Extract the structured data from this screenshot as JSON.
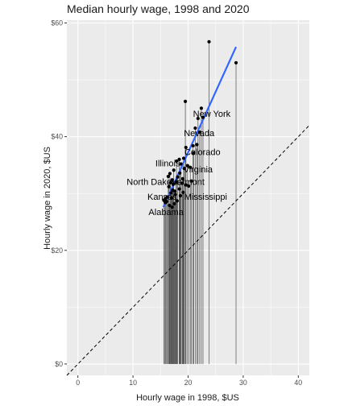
{
  "chart_data": {
    "type": "scatter",
    "title": "Median hourly wage, 1998 and 2020",
    "xlabel": "Hourly wage in 1998, $US",
    "ylabel": "Hourly wage in 2020, $US",
    "xlim": [
      -2,
      42
    ],
    "ylim": [
      -2,
      60.5
    ],
    "x_ticks": [
      0,
      10,
      20,
      30,
      40
    ],
    "x_tick_labels": [
      "0",
      "10",
      "20",
      "30",
      "40"
    ],
    "y_ticks": [
      0,
      20,
      40,
      60
    ],
    "y_tick_labels": [
      "$0",
      "$20",
      "$40",
      "$60"
    ],
    "grid": true,
    "colors": {
      "panel_background": "#ebebeb",
      "grid": "#ffffff",
      "points": "#000000",
      "segments": "#4d4d4d",
      "fit_line": "#3366ff",
      "reference_line": "#000000"
    },
    "reference_line": {
      "style": "dashed",
      "slope": 1,
      "intercept": 0
    },
    "fit_line": {
      "x": [
        15.5,
        28.7
      ],
      "y": [
        27.6,
        55.8
      ]
    },
    "points": [
      {
        "x": 23.8,
        "y": 56.7
      },
      {
        "x": 28.7,
        "y": 53.0
      },
      {
        "x": 19.5,
        "y": 46.2
      },
      {
        "x": 22.4,
        "y": 45.0
      },
      {
        "x": 21.8,
        "y": 43.2
      },
      {
        "x": 22.7,
        "y": 43.4
      },
      {
        "x": 21.3,
        "y": 41.5
      },
      {
        "x": 22.1,
        "y": 40.8
      },
      {
        "x": 20.9,
        "y": 38.4
      },
      {
        "x": 21.6,
        "y": 38.6
      },
      {
        "x": 19.6,
        "y": 38.1
      },
      {
        "x": 18.4,
        "y": 36.0
      },
      {
        "x": 19.2,
        "y": 36.2
      },
      {
        "x": 17.9,
        "y": 35.7
      },
      {
        "x": 18.7,
        "y": 35.2
      },
      {
        "x": 19.9,
        "y": 34.9
      },
      {
        "x": 20.4,
        "y": 34.6
      },
      {
        "x": 17.4,
        "y": 34.1
      },
      {
        "x": 16.7,
        "y": 33.5
      },
      {
        "x": 18.1,
        "y": 32.9
      },
      {
        "x": 19.0,
        "y": 32.6
      },
      {
        "x": 16.4,
        "y": 33.0
      },
      {
        "x": 17.1,
        "y": 32.4
      },
      {
        "x": 17.8,
        "y": 32.0
      },
      {
        "x": 18.9,
        "y": 31.8
      },
      {
        "x": 19.6,
        "y": 31.5
      },
      {
        "x": 17.3,
        "y": 31.6
      },
      {
        "x": 16.5,
        "y": 31.2
      },
      {
        "x": 18.4,
        "y": 30.8
      },
      {
        "x": 17.6,
        "y": 30.4
      },
      {
        "x": 16.9,
        "y": 30.1
      },
      {
        "x": 17.7,
        "y": 29.8
      },
      {
        "x": 16.2,
        "y": 29.4
      },
      {
        "x": 17.0,
        "y": 29.2
      },
      {
        "x": 15.8,
        "y": 29.0
      },
      {
        "x": 15.6,
        "y": 28.8
      },
      {
        "x": 18.0,
        "y": 28.7
      },
      {
        "x": 17.5,
        "y": 28.2
      },
      {
        "x": 16.6,
        "y": 27.9
      },
      {
        "x": 18.6,
        "y": 29.6
      },
      {
        "x": 20.1,
        "y": 31.3
      },
      {
        "x": 17.2,
        "y": 30.6
      },
      {
        "x": 16.1,
        "y": 28.6
      },
      {
        "x": 18.5,
        "y": 33.6
      },
      {
        "x": 19.3,
        "y": 34.4
      },
      {
        "x": 20.6,
        "y": 32.2
      },
      {
        "x": 21.0,
        "y": 37.1
      },
      {
        "x": 16.8,
        "y": 31.9
      },
      {
        "x": 15.9,
        "y": 28.4
      },
      {
        "x": 17.1,
        "y": 27.6
      },
      {
        "x": 19.1,
        "y": 30.2
      }
    ],
    "labels": [
      {
        "text": "New York",
        "x": 24.3,
        "y": 43.9
      },
      {
        "text": "Nevada",
        "x": 22.0,
        "y": 40.5
      },
      {
        "text": "Colorado",
        "x": 22.6,
        "y": 37.2
      },
      {
        "text": "Illinois",
        "x": 16.3,
        "y": 35.2
      },
      {
        "text": "Virginia",
        "x": 21.8,
        "y": 34.1
      },
      {
        "text": "North Dakota",
        "x": 13.6,
        "y": 31.9
      },
      {
        "text": "Vermont",
        "x": 20.0,
        "y": 31.9
      },
      {
        "text": "Kansas",
        "x": 15.3,
        "y": 29.3
      },
      {
        "text": "Mississippi",
        "x": 23.2,
        "y": 29.3
      },
      {
        "text": "Alabama",
        "x": 16.0,
        "y": 26.6
      }
    ]
  }
}
